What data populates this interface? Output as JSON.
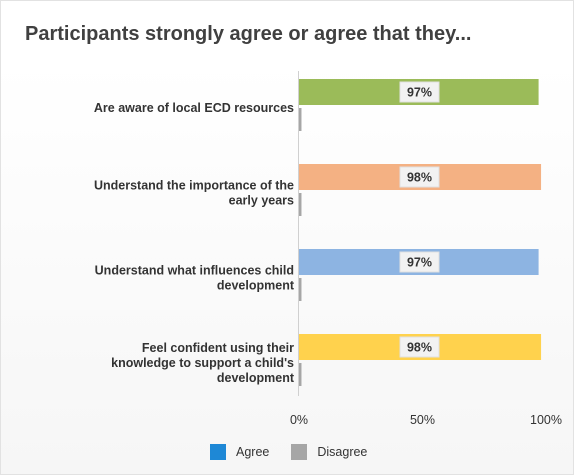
{
  "chart_data": {
    "type": "bar",
    "orientation": "horizontal",
    "title": "Participants strongly agree or agree that they...",
    "categories": [
      [
        "Are aware of local ECD resources"
      ],
      [
        "Understand the importance of the",
        "early years"
      ],
      [
        "Understand what influences child",
        "development"
      ],
      [
        "Feel confident using their",
        "knowledge to support a child's",
        "development"
      ]
    ],
    "series": [
      {
        "name": "Agree",
        "values": [
          97,
          98,
          97,
          98
        ],
        "labels": [
          "97%",
          "98%",
          "97%",
          "98%"
        ],
        "bar_colors": [
          "#9bbb59",
          "#f4b183",
          "#8db4e2",
          "#ffd24d"
        ],
        "legend_color": "#1e88d6"
      },
      {
        "name": "Disagree",
        "values": [
          1,
          1,
          1,
          1
        ],
        "bar_colors": [
          "#a6a6a6",
          "#a6a6a6",
          "#a6a6a6",
          "#a6a6a6"
        ],
        "legend_color": "#a6a6a6"
      }
    ],
    "xlim": [
      0,
      100
    ],
    "x_ticks": [
      "0%",
      "50%",
      "100%"
    ],
    "grid": false,
    "legend_position": "bottom"
  }
}
